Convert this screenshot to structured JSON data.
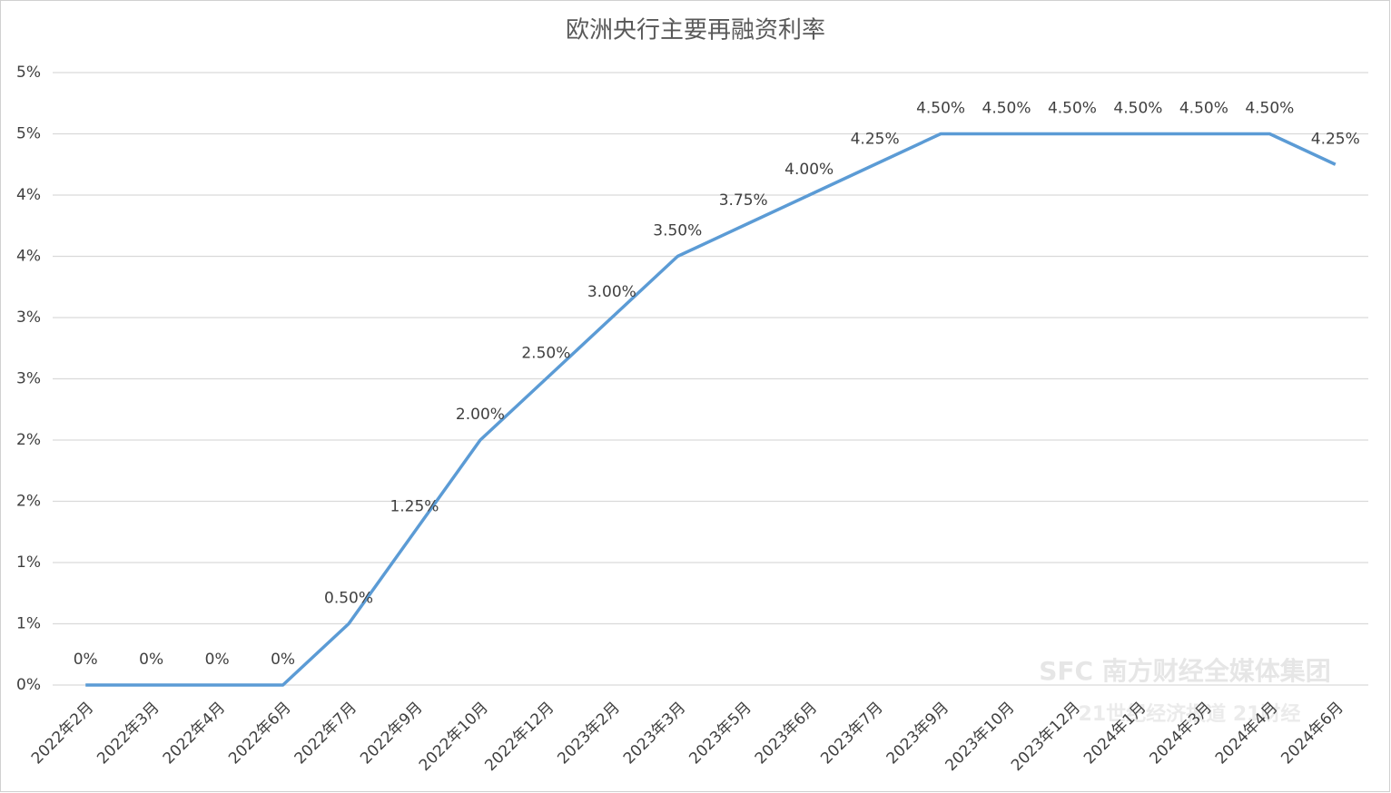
{
  "chart_data": {
    "type": "line",
    "title": "欧洲央行主要再融资利率",
    "categories": [
      "2022年2月",
      "2022年3月",
      "2022年4月",
      "2022年6月",
      "2022年7月",
      "2022年9月",
      "2022年10月",
      "2022年12月",
      "2023年2月",
      "2023年3月",
      "2023年5月",
      "2023年6月",
      "2023年7月",
      "2023年9月",
      "2023年10月",
      "2023年12月",
      "2024年1月",
      "2024年3月",
      "2024年4月",
      "2024年6月"
    ],
    "series": [
      {
        "color": "#5b9bd5",
        "values": [
          0,
          0,
          0,
          0,
          0.5,
          1.25,
          2.0,
          2.5,
          3.0,
          3.5,
          3.75,
          4.0,
          4.25,
          4.5,
          4.5,
          4.5,
          4.5,
          4.5,
          4.5,
          4.25
        ],
        "value_labels": [
          "0%",
          "0%",
          "0%",
          "0%",
          "0.50%",
          "1.25%",
          "2.00%",
          "2.50%",
          "3.00%",
          "3.50%",
          "3.75%",
          "4.00%",
          "4.25%",
          "4.50%",
          "4.50%",
          "4.50%",
          "4.50%",
          "4.50%",
          "4.50%",
          "4.25%"
        ]
      }
    ],
    "ylim": [
      0,
      5
    ],
    "yticks": [
      {
        "value": 0,
        "label": "0%"
      },
      {
        "value": 0.5,
        "label": "1%"
      },
      {
        "value": 1,
        "label": "1%"
      },
      {
        "value": 1.5,
        "label": "2%"
      },
      {
        "value": 2,
        "label": "2%"
      },
      {
        "value": 2.5,
        "label": "3%"
      },
      {
        "value": 3,
        "label": "3%"
      },
      {
        "value": 3.5,
        "label": "4%"
      },
      {
        "value": 4,
        "label": "4%"
      },
      {
        "value": 4.5,
        "label": "5%"
      },
      {
        "value": 5,
        "label": "5%"
      }
    ],
    "grid": true,
    "watermark": [
      "SFC 南方财经全媒体集团",
      "21世纪经济报道 21财经"
    ]
  }
}
